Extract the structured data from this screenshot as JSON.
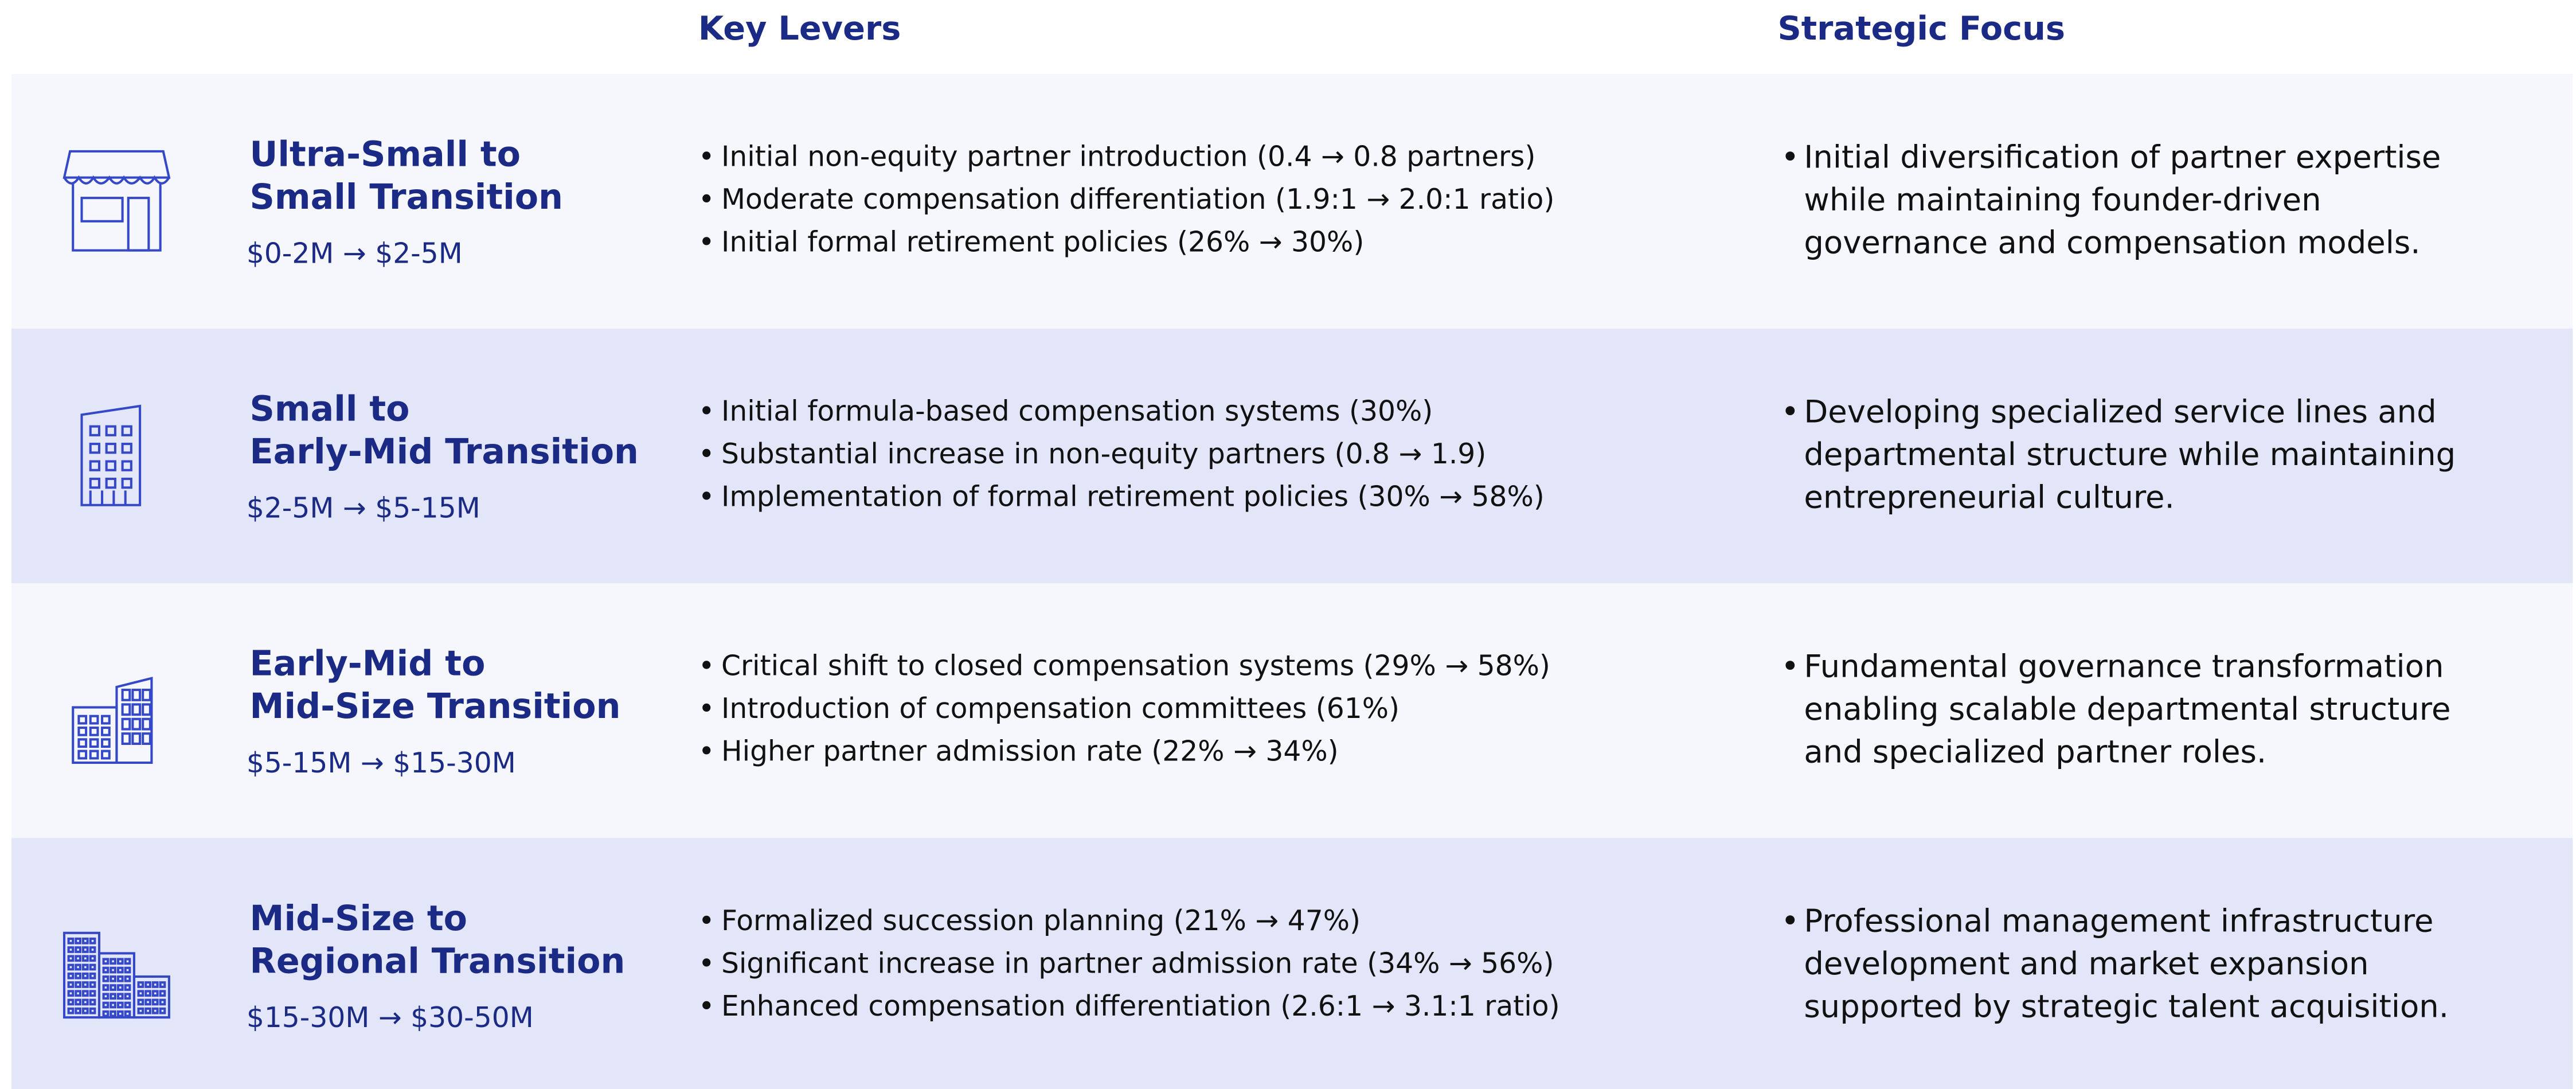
{
  "header": {
    "columns": [
      "Key Levers",
      "Strategic Focus"
    ]
  },
  "rows": [
    {
      "title_lines": [
        "Ultra-Small to",
        "Small Transition"
      ],
      "range": "$0-2M → $2-5M",
      "levers": [
        "Initial non-equity partner introduction (0.4 → 0.8 partners)",
        "Moderate compensation differentiation (1.9:1 → 2.0:1 ratio)",
        "Initial formal retirement policies (26% → 30%)"
      ],
      "focus": "Initial diversification of partner expertise while maintaining founder-driven governance and compensation models."
    },
    {
      "title_lines": [
        "Small to",
        "Early-Mid Transition"
      ],
      "range": "$2-5M → $5-15M",
      "levers": [
        "Initial formula-based compensation systems (30%)",
        "Substantial increase in non-equity partners (0.8 → 1.9)",
        "Implementation of formal retirement policies (30% → 58%)"
      ],
      "focus": "Developing specialized service lines and departmental structure while maintaining entrepreneurial culture."
    },
    {
      "title_lines": [
        "Early-Mid to",
        "Mid-Size Transition"
      ],
      "range": "$5-15M → $15-30M",
      "levers": [
        "Critical shift to closed compensation systems (29% → 58%)",
        "Introduction of compensation committees (61%)",
        "Higher partner admission rate (22% → 34%)"
      ],
      "focus": "Fundamental governance transformation enabling scalable departmental structure and specialized partner roles."
    },
    {
      "title_lines": [
        "Mid-Size to",
        "Regional Transition"
      ],
      "range": "$15-30M → $30-50M",
      "levers": [
        "Formalized succession planning (21% → 47%)",
        "Significant increase in partner admission rate (34% → 56%)",
        "Enhanced compensation differentiation (2.6:1 → 3.1:1 ratio)"
      ],
      "focus": "Professional management infrastructure development and market expansion supported by strategic talent acquisition."
    }
  ]
}
